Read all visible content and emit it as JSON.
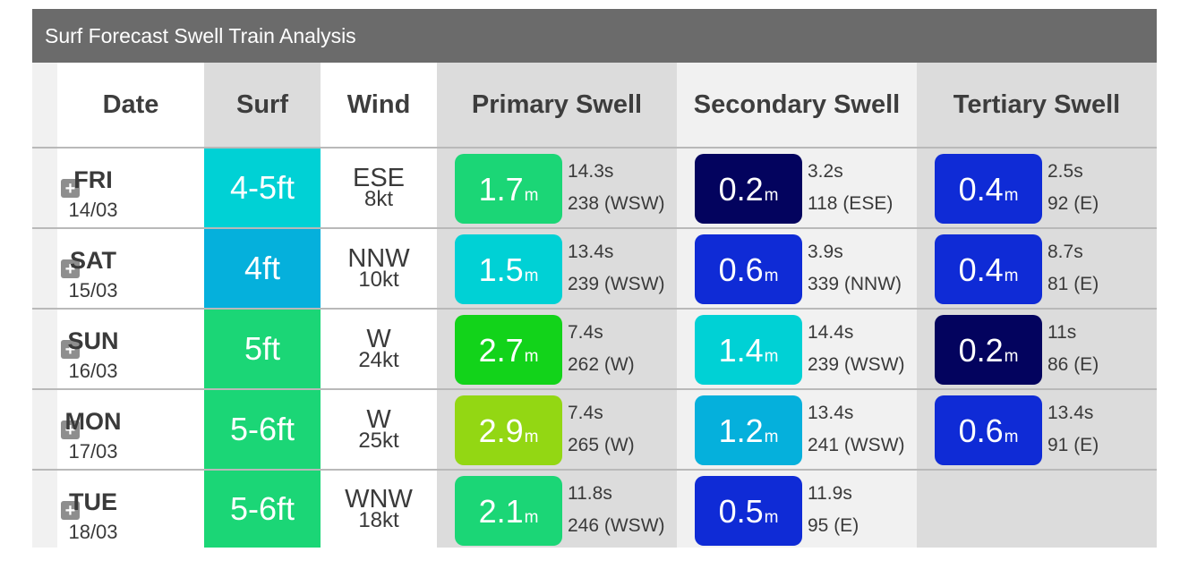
{
  "title": "Surf Forecast Swell Train Analysis",
  "headers": {
    "date": "Date",
    "surf": "Surf",
    "wind": "Wind",
    "primary": "Primary Swell",
    "secondary": "Secondary Swell",
    "tertiary": "Tertiary Swell"
  },
  "expand_label": "+",
  "unit": "m",
  "rows": [
    {
      "day": "FRI",
      "date": "14/03",
      "surf": "4-5ft",
      "surf_color": "#00d1d5",
      "wind_dir": "ESE",
      "wind_speed": "8kt",
      "primary": {
        "height": "1.7",
        "period": "14.3s",
        "direction": "238 (WSW)",
        "color": "#1bd676"
      },
      "secondary": {
        "height": "0.2",
        "period": "3.2s",
        "direction": "118 (ESE)",
        "color": "#03035e"
      },
      "tertiary": {
        "height": "0.4",
        "period": "2.5s",
        "direction": "92 (E)",
        "color": "#0f2bd6"
      }
    },
    {
      "day": "SAT",
      "date": "15/03",
      "surf": "4ft",
      "surf_color": "#05b0dc",
      "wind_dir": "NNW",
      "wind_speed": "10kt",
      "primary": {
        "height": "1.5",
        "period": "13.4s",
        "direction": "239 (WSW)",
        "color": "#00d1d5"
      },
      "secondary": {
        "height": "0.6",
        "period": "3.9s",
        "direction": "339 (NNW)",
        "color": "#0f2bd6"
      },
      "tertiary": {
        "height": "0.4",
        "period": "8.7s",
        "direction": "81 (E)",
        "color": "#0f2bd6"
      }
    },
    {
      "day": "SUN",
      "date": "16/03",
      "surf": "5ft",
      "surf_color": "#1bd676",
      "wind_dir": "W",
      "wind_speed": "24kt",
      "primary": {
        "height": "2.7",
        "period": "7.4s",
        "direction": "262 (W)",
        "color": "#12d31a"
      },
      "secondary": {
        "height": "1.4",
        "period": "14.4s",
        "direction": "239 (WSW)",
        "color": "#00d1d5"
      },
      "tertiary": {
        "height": "0.2",
        "period": "11s",
        "direction": "86 (E)",
        "color": "#03035e"
      }
    },
    {
      "day": "MON",
      "date": "17/03",
      "surf": "5-6ft",
      "surf_color": "#1bd676",
      "wind_dir": "W",
      "wind_speed": "25kt",
      "primary": {
        "height": "2.9",
        "period": "7.4s",
        "direction": "265 (W)",
        "color": "#93d713"
      },
      "secondary": {
        "height": "1.2",
        "period": "13.4s",
        "direction": "241 (WSW)",
        "color": "#05b0dc"
      },
      "tertiary": {
        "height": "0.6",
        "period": "13.4s",
        "direction": "91 (E)",
        "color": "#0f2bd6"
      }
    },
    {
      "day": "TUE",
      "date": "18/03",
      "surf": "5-6ft",
      "surf_color": "#1bd676",
      "wind_dir": "WNW",
      "wind_speed": "18kt",
      "primary": {
        "height": "2.1",
        "period": "11.8s",
        "direction": "246 (WSW)",
        "color": "#1bd676"
      },
      "secondary": {
        "height": "0.5",
        "period": "11.9s",
        "direction": "95 (E)",
        "color": "#0f2bd6"
      },
      "tertiary": null
    }
  ]
}
